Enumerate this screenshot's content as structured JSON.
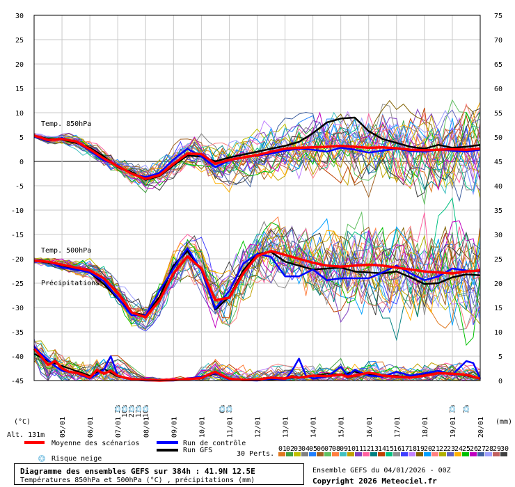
{
  "chart_data": {
    "type": "line",
    "title": "Diagramme des ensembles GEFS sur 384h : 41.9N 12.5E",
    "subtitle": "Températures 850hPa et 500hPa (°C) , précipitations (mm)",
    "run_info": "Ensemble GEFS du 04/01/2026 - 00Z",
    "copyright": "Copyright 2026 Meteociel.fr",
    "altitude": "Alt. 131m",
    "left_axis_unit": "(°C)",
    "right_axis_unit": "(mm)",
    "left_ticks": [
      30,
      25,
      20,
      15,
      10,
      5,
      0,
      -5,
      -10,
      -15,
      -20,
      -25,
      -30,
      -35,
      -40,
      -45
    ],
    "right_ticks": [
      75,
      70,
      65,
      60,
      55,
      50,
      45,
      40,
      35,
      30,
      25,
      20,
      15,
      10,
      5,
      0
    ],
    "ylim_left": [
      -45,
      30
    ],
    "ylim_right": [
      0,
      75
    ],
    "x_dates": [
      "05/01",
      "06/01",
      "07/01",
      "08/01",
      "09/01",
      "10/01",
      "11/01",
      "12/01",
      "13/01",
      "14/01",
      "15/01",
      "16/01",
      "17/01",
      "18/01",
      "19/01",
      "20/01"
    ],
    "x_range_days": [
      4,
      20
    ],
    "panel_labels": {
      "t850": "Temp. 850hPa",
      "t500": "Temp. 500hPa",
      "precip": "Précipitations"
    },
    "legend": {
      "mean": "Moyenne des scénarios",
      "control": "Run de contrôle",
      "gfs": "Run GFS",
      "snow": "Risque neige",
      "perts": "30 Perts."
    },
    "colors": {
      "mean": "#ff0000",
      "control": "#0000ff",
      "gfs": "#000000",
      "snow": "#8ecae6",
      "axis": "#000000",
      "grid": "#c8c8c8",
      "zero": "#808080"
    },
    "member_labels": [
      "01",
      "02",
      "03",
      "04",
      "05",
      "06",
      "07",
      "08",
      "09",
      "10",
      "11",
      "12",
      "13",
      "14",
      "15",
      "16",
      "17",
      "18",
      "19",
      "20",
      "21",
      "22",
      "23",
      "24",
      "25",
      "26",
      "27",
      "28",
      "29",
      "30"
    ],
    "member_colors": [
      "#e07820",
      "#40a040",
      "#c0c000",
      "#808080",
      "#2080ff",
      "#a06020",
      "#60c060",
      "#ff8040",
      "#40c0c0",
      "#c0a000",
      "#8040c0",
      "#ff60a0",
      "#008080",
      "#c04000",
      "#00c080",
      "#909090",
      "#4040ff",
      "#c080ff",
      "#806000",
      "#00a0ff",
      "#ff8080",
      "#b0b000",
      "#6060c0",
      "#ffb000",
      "#00c000",
      "#c000c0",
      "#4060a0",
      "#a0a0ff",
      "#c06060",
      "#404040"
    ],
    "t850_mean": [
      [
        4.0,
        5.3
      ],
      [
        4.5,
        4.4
      ],
      [
        5.0,
        4.6
      ],
      [
        5.5,
        4.1
      ],
      [
        6.0,
        2.5
      ],
      [
        6.5,
        0.6
      ],
      [
        7.0,
        -1.0
      ],
      [
        7.5,
        -2.5
      ],
      [
        8.0,
        -3.6
      ],
      [
        8.5,
        -2.8
      ],
      [
        9.0,
        -0.5
      ],
      [
        9.5,
        1.6
      ],
      [
        10.0,
        1.5
      ],
      [
        10.5,
        -0.5
      ],
      [
        11.0,
        0.3
      ],
      [
        11.5,
        0.8
      ],
      [
        12.0,
        1.3
      ],
      [
        12.5,
        2.0
      ],
      [
        13.0,
        2.6
      ],
      [
        13.5,
        2.8
      ],
      [
        14.0,
        2.9
      ],
      [
        14.5,
        3.0
      ],
      [
        15.0,
        3.2
      ],
      [
        15.5,
        3.0
      ],
      [
        16.0,
        2.8
      ],
      [
        16.5,
        2.9
      ],
      [
        17.0,
        2.7
      ],
      [
        17.5,
        2.4
      ],
      [
        18.0,
        2.3
      ],
      [
        18.5,
        2.4
      ],
      [
        19.0,
        2.5
      ],
      [
        19.5,
        2.4
      ],
      [
        20.0,
        2.6
      ]
    ],
    "t850_control": [
      [
        4.0,
        5.1
      ],
      [
        4.5,
        4.2
      ],
      [
        5.0,
        4.8
      ],
      [
        5.5,
        4.0
      ],
      [
        6.0,
        2.2
      ],
      [
        6.5,
        0.2
      ],
      [
        7.0,
        -0.8
      ],
      [
        7.5,
        -2.6
      ],
      [
        8.0,
        -3.2
      ],
      [
        8.5,
        -2.4
      ],
      [
        9.0,
        0.4
      ],
      [
        9.5,
        2.6
      ],
      [
        10.0,
        1.0
      ],
      [
        10.5,
        -1.2
      ],
      [
        11.0,
        0.2
      ],
      [
        11.5,
        0.8
      ],
      [
        12.0,
        1.2
      ],
      [
        12.5,
        1.6
      ],
      [
        13.0,
        2.2
      ],
      [
        13.5,
        2.6
      ],
      [
        14.0,
        2.4
      ],
      [
        14.5,
        2.0
      ],
      [
        15.0,
        2.8
      ],
      [
        15.5,
        2.4
      ],
      [
        16.0,
        1.8
      ],
      [
        16.5,
        2.2
      ],
      [
        17.0,
        2.6
      ],
      [
        17.5,
        2.1
      ],
      [
        18.0,
        2.0
      ],
      [
        18.5,
        2.4
      ],
      [
        19.0,
        2.2
      ],
      [
        19.5,
        2.0
      ],
      [
        20.0,
        2.4
      ]
    ],
    "t850_gfs": [
      [
        4.0,
        5.3
      ],
      [
        4.5,
        4.6
      ],
      [
        5.0,
        4.5
      ],
      [
        5.5,
        3.8
      ],
      [
        6.0,
        2.8
      ],
      [
        6.5,
        1.0
      ],
      [
        7.0,
        -1.2
      ],
      [
        7.5,
        -2.2
      ],
      [
        8.0,
        -3.8
      ],
      [
        8.5,
        -3.0
      ],
      [
        9.0,
        -0.8
      ],
      [
        9.5,
        1.2
      ],
      [
        10.0,
        1.0
      ],
      [
        10.5,
        0.0
      ],
      [
        11.0,
        0.8
      ],
      [
        11.5,
        1.4
      ],
      [
        12.0,
        2.0
      ],
      [
        12.5,
        2.6
      ],
      [
        13.0,
        3.2
      ],
      [
        13.5,
        4.0
      ],
      [
        14.0,
        5.8
      ],
      [
        14.5,
        8.0
      ],
      [
        15.0,
        8.8
      ],
      [
        15.5,
        9.0
      ],
      [
        16.0,
        6.2
      ],
      [
        16.5,
        4.6
      ],
      [
        17.0,
        3.8
      ],
      [
        17.5,
        3.0
      ],
      [
        18.0,
        2.6
      ],
      [
        18.5,
        3.4
      ],
      [
        19.0,
        2.8
      ],
      [
        19.5,
        3.0
      ],
      [
        20.0,
        3.4
      ]
    ],
    "t500_mean": [
      [
        4.0,
        -20.4
      ],
      [
        4.5,
        -20.6
      ],
      [
        5.0,
        -21.2
      ],
      [
        5.5,
        -21.8
      ],
      [
        6.0,
        -22.4
      ],
      [
        6.5,
        -24.0
      ],
      [
        7.0,
        -27.0
      ],
      [
        7.5,
        -31.0
      ],
      [
        8.0,
        -32.0
      ],
      [
        8.5,
        -28.5
      ],
      [
        9.0,
        -23.0
      ],
      [
        9.5,
        -19.5
      ],
      [
        10.0,
        -22.0
      ],
      [
        10.5,
        -28.5
      ],
      [
        11.0,
        -28.0
      ],
      [
        11.5,
        -23.0
      ],
      [
        12.0,
        -19.4
      ],
      [
        12.5,
        -18.4
      ],
      [
        13.0,
        -19.2
      ],
      [
        13.5,
        -20.0
      ],
      [
        14.0,
        -20.8
      ],
      [
        14.5,
        -21.4
      ],
      [
        15.0,
        -21.6
      ],
      [
        15.5,
        -21.4
      ],
      [
        16.0,
        -21.2
      ],
      [
        16.5,
        -21.4
      ],
      [
        17.0,
        -21.8
      ],
      [
        17.5,
        -22.2
      ],
      [
        18.0,
        -22.6
      ],
      [
        18.5,
        -22.8
      ],
      [
        19.0,
        -23.0
      ],
      [
        19.5,
        -22.6
      ],
      [
        20.0,
        -22.4
      ]
    ],
    "t500_control": [
      [
        4.0,
        -20.6
      ],
      [
        4.5,
        -20.6
      ],
      [
        5.0,
        -21.8
      ],
      [
        5.5,
        -22.2
      ],
      [
        6.0,
        -22.8
      ],
      [
        6.5,
        -24.6
      ],
      [
        7.0,
        -28.0
      ],
      [
        7.5,
        -31.6
      ],
      [
        8.0,
        -31.6
      ],
      [
        8.5,
        -26.6
      ],
      [
        9.0,
        -22.0
      ],
      [
        9.5,
        -17.8
      ],
      [
        10.0,
        -22.4
      ],
      [
        10.5,
        -30.2
      ],
      [
        11.0,
        -26.6
      ],
      [
        11.5,
        -21.0
      ],
      [
        12.0,
        -19.0
      ],
      [
        12.5,
        -19.6
      ],
      [
        13.0,
        -23.6
      ],
      [
        13.5,
        -23.6
      ],
      [
        14.0,
        -22.2
      ],
      [
        14.5,
        -24.4
      ],
      [
        15.0,
        -24.0
      ],
      [
        15.5,
        -24.0
      ],
      [
        16.0,
        -24.0
      ],
      [
        16.5,
        -22.8
      ],
      [
        17.0,
        -21.4
      ],
      [
        17.5,
        -23.0
      ],
      [
        18.0,
        -24.4
      ],
      [
        18.5,
        -23.6
      ],
      [
        19.0,
        -22.0
      ],
      [
        19.5,
        -22.4
      ],
      [
        20.0,
        -22.6
      ]
    ],
    "t500_gfs": [
      [
        4.0,
        -20.4
      ],
      [
        4.5,
        -20.8
      ],
      [
        5.0,
        -21.4
      ],
      [
        5.5,
        -22.0
      ],
      [
        6.0,
        -22.8
      ],
      [
        6.5,
        -25.2
      ],
      [
        7.0,
        -28.2
      ],
      [
        7.5,
        -31.0
      ],
      [
        8.0,
        -31.6
      ],
      [
        8.5,
        -27.8
      ],
      [
        9.0,
        -21.4
      ],
      [
        9.5,
        -18.4
      ],
      [
        10.0,
        -22.2
      ],
      [
        10.5,
        -30.4
      ],
      [
        11.0,
        -27.8
      ],
      [
        11.5,
        -22.4
      ],
      [
        12.0,
        -19.0
      ],
      [
        12.5,
        -18.6
      ],
      [
        13.0,
        -20.6
      ],
      [
        13.5,
        -21.4
      ],
      [
        14.0,
        -22.2
      ],
      [
        14.5,
        -22.0
      ],
      [
        15.0,
        -21.8
      ],
      [
        15.5,
        -22.6
      ],
      [
        16.0,
        -22.8
      ],
      [
        16.5,
        -23.0
      ],
      [
        17.0,
        -22.6
      ],
      [
        17.5,
        -23.8
      ],
      [
        18.0,
        -25.2
      ],
      [
        18.5,
        -25.0
      ],
      [
        19.0,
        -23.8
      ],
      [
        19.5,
        -23.2
      ],
      [
        20.0,
        -23.4
      ]
    ],
    "precip_mean": [
      [
        4.0,
        6.5
      ],
      [
        4.25,
        5.0
      ],
      [
        4.5,
        3.2
      ],
      [
        4.75,
        4.0
      ],
      [
        5.0,
        2.5
      ],
      [
        5.25,
        1.8
      ],
      [
        5.5,
        1.6
      ],
      [
        5.75,
        1.2
      ],
      [
        6.0,
        0.6
      ],
      [
        6.25,
        2.2
      ],
      [
        6.5,
        1.4
      ],
      [
        6.75,
        2.0
      ],
      [
        7.0,
        1.0
      ],
      [
        7.25,
        0.6
      ],
      [
        7.5,
        0.3
      ],
      [
        8.0,
        0.1
      ],
      [
        8.5,
        0.0
      ],
      [
        9.0,
        0.1
      ],
      [
        9.5,
        0.3
      ],
      [
        10.0,
        0.5
      ],
      [
        10.25,
        1.2
      ],
      [
        10.5,
        1.8
      ],
      [
        10.75,
        1.0
      ],
      [
        11.0,
        0.4
      ],
      [
        11.5,
        0.1
      ],
      [
        12.0,
        0.2
      ],
      [
        12.5,
        0.6
      ],
      [
        13.0,
        0.4
      ],
      [
        13.25,
        0.8
      ],
      [
        13.5,
        0.6
      ],
      [
        14.0,
        1.0
      ],
      [
        14.5,
        0.9
      ],
      [
        15.0,
        1.2
      ],
      [
        15.25,
        0.8
      ],
      [
        15.5,
        1.0
      ],
      [
        16.0,
        1.6
      ],
      [
        16.25,
        1.4
      ],
      [
        16.5,
        1.0
      ],
      [
        17.0,
        0.8
      ],
      [
        17.5,
        0.6
      ],
      [
        18.0,
        1.0
      ],
      [
        18.5,
        1.5
      ],
      [
        19.0,
        1.4
      ],
      [
        19.5,
        1.2
      ],
      [
        20.0,
        0.4
      ]
    ],
    "precip_control": [
      [
        4.0,
        7.0
      ],
      [
        4.25,
        5.5
      ],
      [
        4.5,
        4.2
      ],
      [
        4.75,
        3.0
      ],
      [
        5.0,
        2.0
      ],
      [
        5.5,
        1.5
      ],
      [
        6.0,
        0.4
      ],
      [
        6.5,
        2.2
      ],
      [
        6.75,
        5.0
      ],
      [
        7.0,
        1.0
      ],
      [
        7.5,
        0.2
      ],
      [
        8.0,
        0.0
      ],
      [
        9.0,
        0.0
      ],
      [
        10.0,
        0.8
      ],
      [
        10.5,
        1.5
      ],
      [
        11.0,
        0.2
      ],
      [
        12.0,
        0.0
      ],
      [
        12.5,
        0.4
      ],
      [
        13.0,
        0.2
      ],
      [
        13.25,
        2.0
      ],
      [
        13.5,
        4.5
      ],
      [
        13.75,
        1.0
      ],
      [
        14.0,
        0.4
      ],
      [
        14.5,
        0.8
      ],
      [
        15.0,
        2.8
      ],
      [
        15.25,
        1.0
      ],
      [
        15.5,
        2.2
      ],
      [
        16.0,
        1.0
      ],
      [
        16.5,
        0.8
      ],
      [
        17.0,
        1.8
      ],
      [
        17.5,
        1.0
      ],
      [
        18.0,
        1.5
      ],
      [
        18.5,
        2.0
      ],
      [
        19.0,
        1.2
      ],
      [
        19.5,
        4.0
      ],
      [
        19.75,
        3.6
      ],
      [
        20.0,
        0.4
      ]
    ],
    "precip_gfs": [
      [
        4.0,
        5.5
      ],
      [
        4.5,
        4.0
      ],
      [
        5.0,
        3.0
      ],
      [
        5.5,
        2.0
      ],
      [
        6.0,
        1.0
      ],
      [
        6.5,
        2.4
      ],
      [
        7.0,
        0.8
      ],
      [
        7.5,
        0.2
      ],
      [
        8.0,
        0.0
      ],
      [
        9.0,
        0.0
      ],
      [
        10.0,
        0.6
      ],
      [
        10.5,
        1.4
      ],
      [
        11.0,
        0.3
      ],
      [
        12.0,
        0.0
      ],
      [
        13.0,
        0.4
      ],
      [
        14.0,
        1.0
      ],
      [
        14.5,
        1.4
      ],
      [
        15.0,
        1.2
      ],
      [
        15.5,
        1.8
      ],
      [
        16.0,
        1.2
      ],
      [
        16.5,
        0.9
      ],
      [
        17.0,
        1.0
      ],
      [
        17.5,
        0.6
      ],
      [
        18.0,
        1.2
      ],
      [
        18.5,
        1.6
      ],
      [
        19.0,
        1.5
      ],
      [
        19.5,
        1.0
      ],
      [
        20.0,
        0.3
      ]
    ],
    "snow_risk": [
      {
        "day": 7.0,
        "pct": "3%"
      },
      {
        "day": 7.25,
        "pct": "10%"
      },
      {
        "day": 7.5,
        "pct": "23%"
      },
      {
        "day": 7.75,
        "pct": "13%"
      },
      {
        "day": 8.0,
        "pct": "10%"
      },
      {
        "day": 10.75,
        "pct": "6%"
      },
      {
        "day": 11.0,
        "pct": "3%"
      },
      {
        "day": 19.0,
        "pct": "3%"
      },
      {
        "day": 19.5,
        "pct": "3%"
      }
    ]
  }
}
